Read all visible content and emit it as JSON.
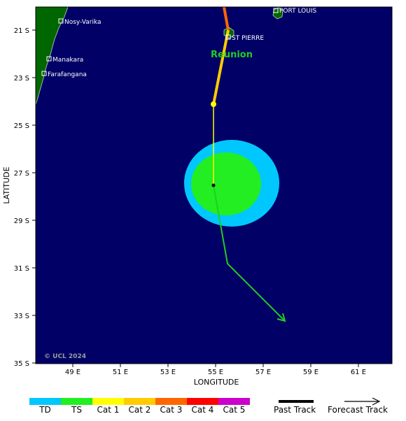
{
  "map": {
    "xlabel": "LONGITUDE",
    "ylabel": "LATITUDE",
    "credit": "© UCL 2024",
    "lon_ticks": [
      "49 E",
      "51 E",
      "53 E",
      "55 E",
      "57 E",
      "59 E",
      "61 E"
    ],
    "lat_ticks": [
      "21 S",
      "23 S",
      "25 S",
      "27 S",
      "29 S",
      "31 S",
      "33 S",
      "35 S"
    ],
    "cities": [
      {
        "name": "Nosy-Varika"
      },
      {
        "name": "Manakara"
      },
      {
        "name": "Farafangana"
      },
      {
        "name": "PORT LOUIS"
      },
      {
        "name": "ST PIERRE"
      }
    ],
    "island_label": "Reunion",
    "colors": {
      "ocean": "#000066",
      "land": "#006600",
      "wind_ts": "#22ee22",
      "wind_outer": "#00c8ff",
      "past_track_cat1": "#ffcc00",
      "past_track_cat3": "#ff6600",
      "forecast_track": "#22cc22"
    }
  },
  "legend": {
    "categories": [
      {
        "label": "TD",
        "color": "#00c8ff"
      },
      {
        "label": "TS",
        "color": "#22ee22"
      },
      {
        "label": "Cat 1",
        "color": "#ffff00"
      },
      {
        "label": "Cat 2",
        "color": "#ffcc00"
      },
      {
        "label": "Cat 3",
        "color": "#ff6600"
      },
      {
        "label": "Cat 4",
        "color": "#ff0000"
      },
      {
        "label": "Cat 5",
        "color": "#cc00cc"
      }
    ],
    "past_track": "Past Track",
    "forecast_track": "Forecast Track"
  }
}
